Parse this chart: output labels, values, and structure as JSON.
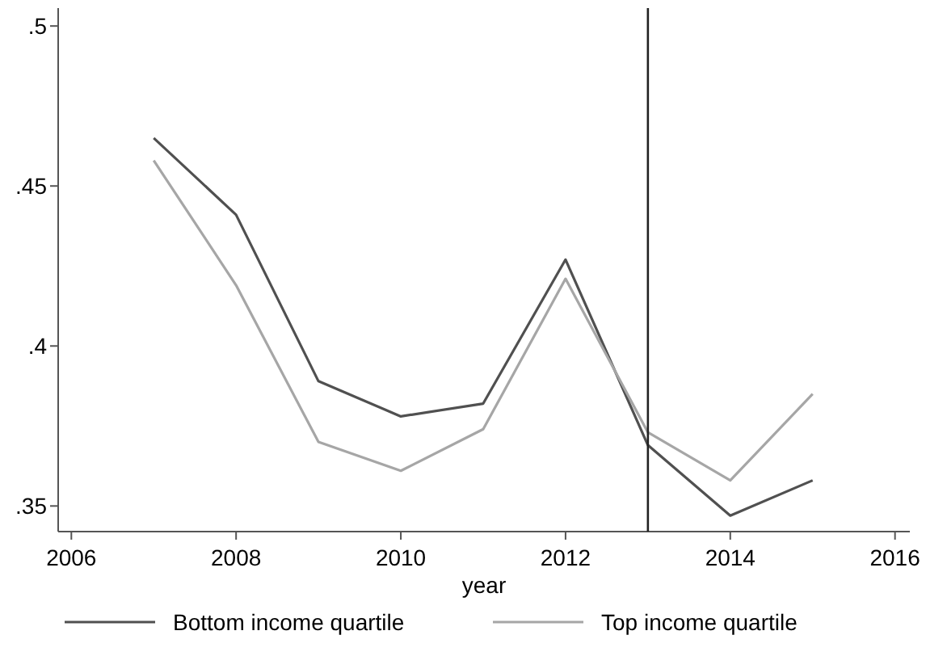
{
  "chart_data": {
    "type": "line",
    "xlabel": "year",
    "x": [
      2007,
      2008,
      2009,
      2010,
      2011,
      2012,
      2013,
      2014,
      2015
    ],
    "series": [
      {
        "name": "Bottom income quartile",
        "color": "#505050",
        "values": [
          0.465,
          0.441,
          0.389,
          0.378,
          0.382,
          0.427,
          0.369,
          0.347,
          0.358
        ]
      },
      {
        "name": "Top income quartile",
        "color": "#a6a6a6",
        "values": [
          0.458,
          0.419,
          0.37,
          0.361,
          0.374,
          0.421,
          0.373,
          0.358,
          0.385
        ]
      }
    ],
    "xlim": [
      2005.84,
      2016.18
    ],
    "xticks": [
      2006,
      2008,
      2010,
      2012,
      2014,
      2016
    ],
    "ylim": [
      0.342,
      0.5056
    ],
    "yticks": [
      {
        "value": 0.35,
        "label": ".35"
      },
      {
        "value": 0.4,
        "label": ".4"
      },
      {
        "value": 0.45,
        "label": ".45"
      },
      {
        "value": 0.5,
        "label": ".5"
      }
    ],
    "ref_lines": [
      {
        "axis": "x",
        "value": 2013,
        "color": "#222222"
      }
    ],
    "legend": "bottom",
    "grid": false,
    "marker": "none",
    "line_style": "solid"
  }
}
